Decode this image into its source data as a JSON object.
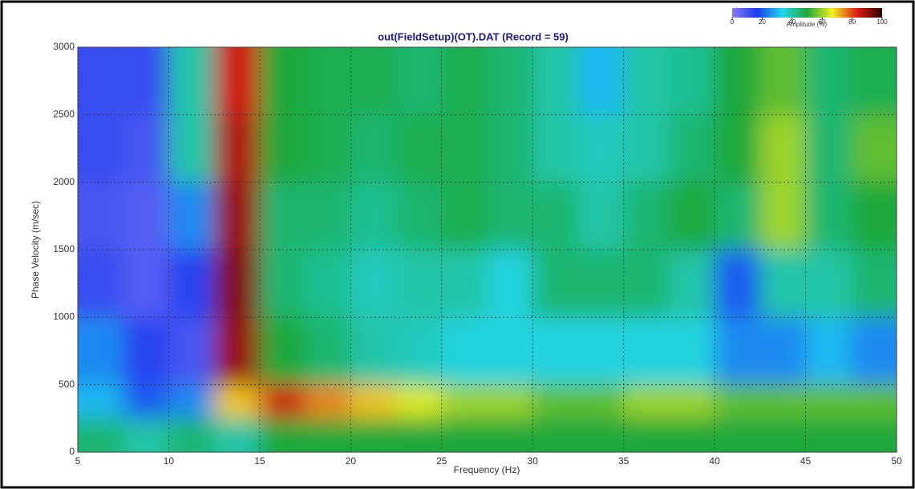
{
  "chart_data": {
    "type": "heatmap",
    "title": "out(FieldSetup)(OT).DAT (Record = 59)",
    "x_label": "Frequency (Hz)",
    "y_label": "Phase Velocity (m/sec)",
    "xlim": [
      5,
      50
    ],
    "xticks": [
      5,
      10,
      15,
      20,
      25,
      30,
      35,
      40,
      45,
      50
    ],
    "ylim": [
      0,
      3000
    ],
    "yticks": [
      0,
      500,
      1000,
      1500,
      2000,
      2500,
      3000
    ],
    "grid": true,
    "xbins": [
      5,
      7.5,
      10,
      12.5,
      15,
      17.5,
      20,
      22.5,
      25,
      27.5,
      30,
      32.5,
      35,
      37.5,
      40,
      42.5,
      45,
      47.5,
      50
    ],
    "ybins": [
      0,
      250,
      500,
      1000,
      1500,
      2000,
      2500,
      3000
    ],
    "z": [
      [
        45,
        40,
        45,
        40,
        50,
        50,
        50,
        50,
        50,
        50,
        50,
        50,
        50,
        50,
        50,
        50,
        50,
        50
      ],
      [
        30,
        20,
        25,
        70,
        85,
        75,
        70,
        65,
        60,
        60,
        55,
        55,
        60,
        60,
        55,
        55,
        55,
        55
      ],
      [
        25,
        15,
        10,
        90,
        50,
        45,
        40,
        38,
        35,
        35,
        35,
        35,
        35,
        35,
        25,
        25,
        30,
        25
      ],
      [
        12,
        8,
        15,
        92,
        45,
        42,
        38,
        40,
        40,
        35,
        45,
        45,
        45,
        40,
        20,
        40,
        40,
        45
      ],
      [
        10,
        8,
        25,
        90,
        45,
        45,
        42,
        45,
        48,
        45,
        45,
        40,
        45,
        50,
        45,
        60,
        45,
        50
      ],
      [
        12,
        10,
        40,
        88,
        50,
        48,
        45,
        48,
        48,
        45,
        40,
        38,
        40,
        45,
        50,
        60,
        45,
        55
      ],
      [
        12,
        12,
        40,
        85,
        50,
        48,
        48,
        45,
        48,
        45,
        40,
        30,
        40,
        42,
        50,
        55,
        45,
        48
      ]
    ],
    "colormap": [
      "#8a7cf5",
      "#1a3cf0",
      "#20d8f0",
      "#1fa83a",
      "#f0f020",
      "#e01a10",
      "#2a0000"
    ],
    "clim": [
      0,
      100
    ],
    "colorbar_ticks": [
      0,
      20,
      40,
      60,
      80,
      100
    ],
    "colorbar_label": "Amplitude (%)"
  }
}
